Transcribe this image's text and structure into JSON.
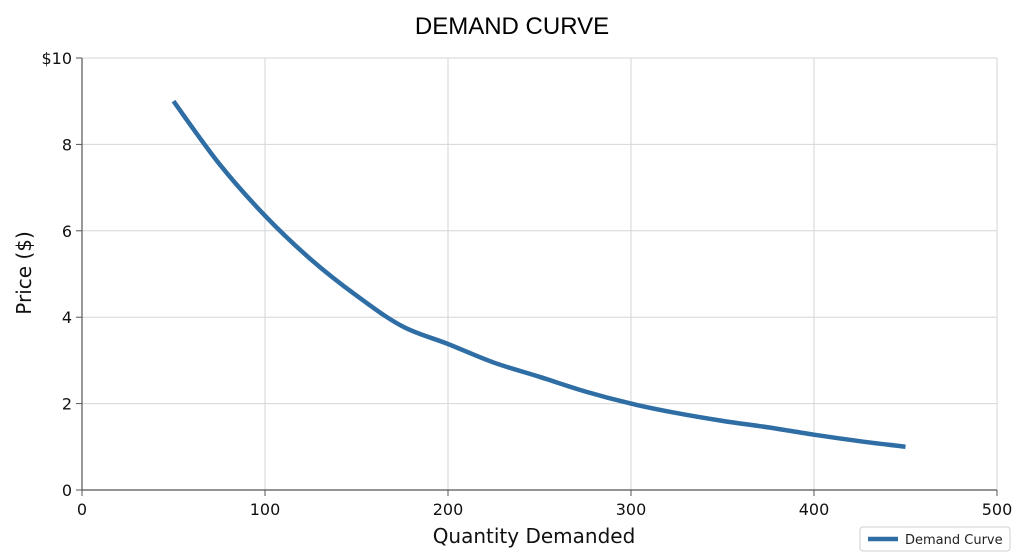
{
  "chart_data": {
    "type": "line",
    "title": "DEMAND CURVE",
    "xlabel": "Quantity Demanded",
    "ylabel": "Price ($)",
    "xlim": [
      0,
      500
    ],
    "ylim": [
      0,
      10
    ],
    "xticks": [
      0,
      100,
      200,
      300,
      400,
      500
    ],
    "xtick_labels": [
      "0",
      "100",
      "200",
      "300",
      "400",
      "500"
    ],
    "yticks": [
      0,
      2,
      4,
      6,
      8,
      10
    ],
    "ytick_labels": [
      "0",
      "2",
      "4",
      "6",
      "8",
      "$10"
    ],
    "grid": true,
    "legend_position": "bottom-right",
    "series": [
      {
        "name": "Demand Curve",
        "color": "#2f6ea5",
        "x": [
          50,
          75,
          100,
          125,
          150,
          175,
          200,
          225,
          250,
          275,
          300,
          325,
          350,
          375,
          400,
          425,
          450
        ],
        "y": [
          9.0,
          7.55,
          6.35,
          5.34,
          4.5,
          3.79,
          3.38,
          2.95,
          2.62,
          2.28,
          2.0,
          1.78,
          1.6,
          1.45,
          1.28,
          1.13,
          1.0
        ]
      }
    ]
  }
}
